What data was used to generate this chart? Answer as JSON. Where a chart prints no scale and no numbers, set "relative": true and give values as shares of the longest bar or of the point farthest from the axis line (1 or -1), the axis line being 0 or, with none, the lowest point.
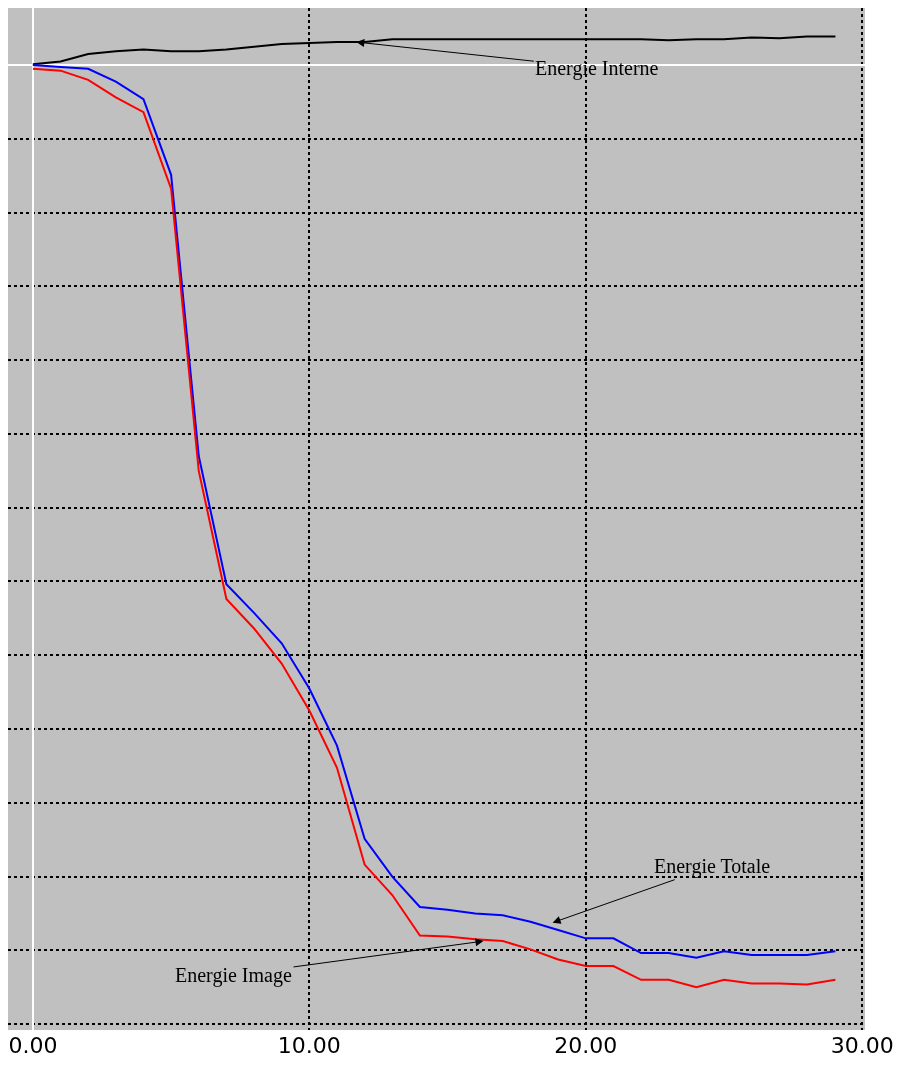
{
  "chart_data": {
    "type": "line",
    "relative": true,
    "x": [
      0,
      1,
      2,
      3,
      4,
      5,
      6,
      7,
      8,
      9,
      10,
      11,
      12,
      13,
      14,
      15,
      16,
      17,
      18,
      19,
      20,
      21,
      22,
      23,
      24,
      25,
      26,
      27,
      28,
      29.03
    ],
    "series": [
      {
        "color": "#000000",
        "values": [
          0.001,
          0.004,
          0.012,
          0.015,
          0.017,
          0.015,
          0.015,
          0.017,
          0.02,
          0.023,
          0.024,
          0.025,
          0.025,
          0.028,
          0.028,
          0.028,
          0.028,
          0.028,
          0.028,
          0.028,
          0.028,
          0.028,
          0.028,
          0.027,
          0.028,
          0.028,
          0.03,
          0.029,
          0.031,
          0.031
        ]
      },
      {
        "color": "#0000ff",
        "values": [
          0,
          -0.002,
          -0.004,
          -0.018,
          -0.037,
          -0.119,
          -0.424,
          -0.563,
          -0.594,
          -0.627,
          -0.676,
          -0.738,
          -0.839,
          -0.88,
          -0.913,
          -0.916,
          -0.92,
          -0.922,
          -0.929,
          -0.938,
          -0.947,
          -0.947,
          -0.963,
          -0.963,
          -0.968,
          -0.961,
          -0.965,
          -0.965,
          -0.965,
          -0.961
        ]
      },
      {
        "color": "#ff0000",
        "values": [
          -0.004,
          -0.006,
          -0.016,
          -0.035,
          -0.051,
          -0.134,
          -0.44,
          -0.579,
          -0.611,
          -0.649,
          -0.7,
          -0.762,
          -0.867,
          -0.9,
          -0.944,
          -0.945,
          -0.948,
          -0.95,
          -0.959,
          -0.97,
          -0.977,
          -0.977,
          -0.992,
          -0.992,
          -1,
          -0.992,
          -0.996,
          -0.996,
          -0.997,
          -0.992
        ]
      }
    ],
    "xlim": [
      -0.9,
      30.1
    ],
    "xticks": [
      {
        "value": 0,
        "label": "0.00"
      },
      {
        "value": 10,
        "label": "10.00"
      },
      {
        "value": 20,
        "label": "20.00"
      },
      {
        "value": 30,
        "label": "30.00"
      }
    ],
    "grid": true,
    "marker": "none",
    "line_style": "solid",
    "annotations": [
      {
        "text": "Energie Interne",
        "x": 11.7,
        "y": 0.025
      },
      {
        "text": "Energie Totale",
        "x": 18.8,
        "y": -0.93
      },
      {
        "text": "Energie Image",
        "x": 16.3,
        "y": -0.95
      }
    ]
  }
}
